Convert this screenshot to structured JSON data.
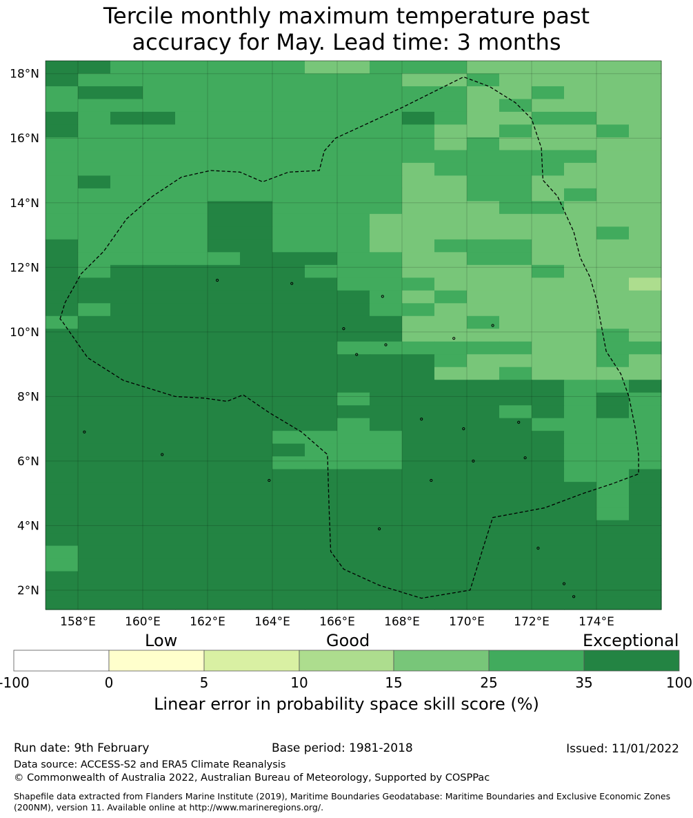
{
  "title": {
    "line1": "Tercile monthly maximum temperature past",
    "line2": "accuracy for May. Lead time: 3 months"
  },
  "map": {
    "lat_labels": [
      "18°N",
      "16°N",
      "14°N",
      "12°N",
      "10°N",
      "8°N",
      "6°N",
      "4°N",
      "2°N"
    ],
    "lat_values": [
      18,
      16,
      14,
      12,
      10,
      8,
      6,
      4,
      2
    ],
    "lon_labels": [
      "158°E",
      "160°E",
      "162°E",
      "164°E",
      "166°E",
      "168°E",
      "170°E",
      "172°E",
      "174°E"
    ],
    "lon_values": [
      158,
      160,
      162,
      164,
      166,
      168,
      170,
      172,
      174
    ],
    "lon_range": [
      157,
      176
    ],
    "lat_range": [
      1.4,
      18.4
    ],
    "grid_rows": [
      "5544444433444333222",
      "5444444444433433332",
      "4554444444444334333",
      "4444444444444243333",
      "5455444444454224433",
      "5444444444443343343",
      "4444444444443433333",
      "4444444444444444432",
      "4444444444434444332",
      "4544444444433443333",
      "4444444444433443433",
      "4444455444433344333",
      "4444455444333333333",
      "4444455444333333343",
      "5444455444334443333",
      "5444445554433443332",
      "5455555544433334333",
      "5555555554443333331",
      "5555555555434333333",
      "5455555555443333333",
      "4555555555533433333",
      "5555555555533333343",
      "5555555554444443344",
      "5555555555554333343",
      "5555555555553343333",
      "5555555555555555445",
      "5555555554555555454",
      "5555555555555545454",
      "5555555554555554444",
      "5555555444455555444",
      "5555555544455555444",
      "5555555444455555444",
      "5555555555555555445",
      "5555555555555555545",
      "5555555555555555545",
      "5555555555555555545",
      "5555555555555555555",
      "5555555555555555555",
      "4555555555555555555",
      "4555555555555555555",
      "5555555555555555555",
      "5555555555555555555",
      "5555555555555555555"
    ],
    "eez_boundary": [
      [
        157.45,
        10.4
      ],
      [
        157.6,
        10.9
      ],
      [
        158.1,
        11.8
      ],
      [
        158.8,
        12.5
      ],
      [
        159.5,
        13.5
      ],
      [
        160.3,
        14.2
      ],
      [
        161.2,
        14.8
      ],
      [
        162.1,
        15.0
      ],
      [
        163,
        14.95
      ],
      [
        163.7,
        14.65
      ],
      [
        164.5,
        14.95
      ],
      [
        165.45,
        15.0
      ],
      [
        165.6,
        15.6
      ],
      [
        165.95,
        16.0
      ],
      [
        166.6,
        16.3
      ],
      [
        168.0,
        16.95
      ],
      [
        169.9,
        17.9
      ],
      [
        170.7,
        17.6
      ],
      [
        171.5,
        17.1
      ],
      [
        172.0,
        16.6
      ],
      [
        172.3,
        15.7
      ],
      [
        172.35,
        14.7
      ],
      [
        172.8,
        14.2
      ],
      [
        173.3,
        13.1
      ],
      [
        173.5,
        12.3
      ],
      [
        173.8,
        11.7
      ],
      [
        174.0,
        11.0
      ],
      [
        174.3,
        9.4
      ],
      [
        174.75,
        8.7
      ],
      [
        175.0,
        8.0
      ],
      [
        175.2,
        7.0
      ],
      [
        175.3,
        6.2
      ],
      [
        175.3,
        5.6
      ],
      [
        174.5,
        5.3
      ],
      [
        173.6,
        5.0
      ],
      [
        172.4,
        4.55
      ],
      [
        170.8,
        4.25
      ],
      [
        170.5,
        3.3
      ],
      [
        170.1,
        2.0
      ],
      [
        168.6,
        1.75
      ],
      [
        167.3,
        2.15
      ],
      [
        166.2,
        2.65
      ],
      [
        165.8,
        3.2
      ],
      [
        165.75,
        4.5
      ],
      [
        165.7,
        6.2
      ],
      [
        164.9,
        6.9
      ],
      [
        163.9,
        7.5
      ],
      [
        163.1,
        8.05
      ],
      [
        162.6,
        7.85
      ],
      [
        161.9,
        7.95
      ],
      [
        161.0,
        8.0
      ],
      [
        159.4,
        8.5
      ],
      [
        158.3,
        9.2
      ],
      [
        157.5,
        10.35
      ]
    ]
  },
  "colorbar": {
    "qualitative_labels": [
      "Low",
      "Good",
      "Exceptional"
    ],
    "ticks": [
      "-100",
      "0",
      "5",
      "10",
      "15",
      "25",
      "35",
      "100"
    ],
    "colors": [
      "#ffffff",
      "#ffffcc",
      "#d9f0a3",
      "#addd8e",
      "#78c679",
      "#41ab5d",
      "#238443"
    ],
    "xlabel": "Linear error in probability space skill score (%)"
  },
  "footer": {
    "run_date": "Run date: 9th February",
    "base_period": "Base period: 1981-2018",
    "issued": "Issued: 11/01/2022",
    "data_source": "Data source: ACCESS-S2 and ERA5 Climate Reanalysis",
    "copyright": "© Commonwealth of Australia 2022, Australian Bureau of Meteorology, Supported by COSPPac",
    "shapefile": "Shapefile data extracted from Flanders Marine Institute (2019), Maritime Boundaries Geodatabase: Maritime Boundaries and Exclusive Economic Zones (200NM), version 11. Available online at http://www.marineregions.org/."
  }
}
